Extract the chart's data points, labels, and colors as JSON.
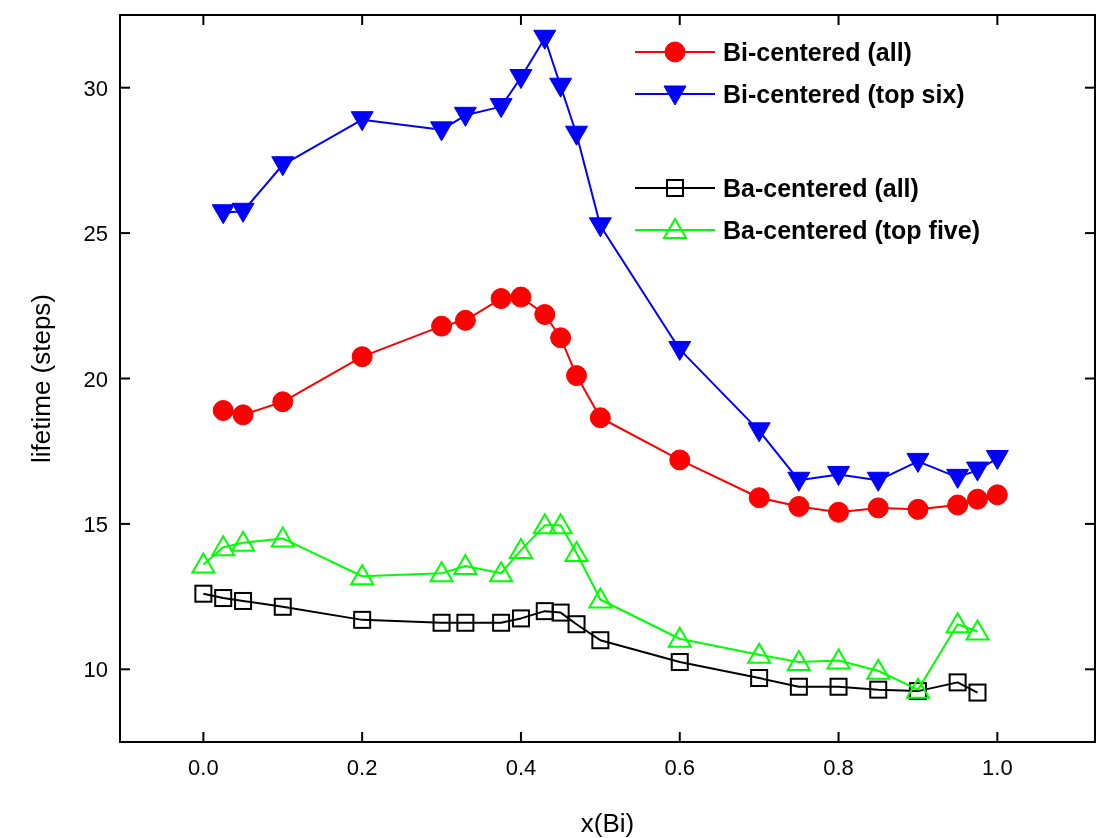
{
  "chart_data": {
    "type": "line",
    "xlabel": "x(Bi)",
    "ylabel": "lifetime (steps)",
    "xlim": [
      -0.105,
      1.123
    ],
    "ylim": [
      7.5,
      32.5
    ],
    "xticks": [
      {
        "value": 0,
        "label": "0.0"
      },
      {
        "value": 0.2,
        "label": "0.2"
      },
      {
        "value": 0.4,
        "label": "0.4"
      },
      {
        "value": 0.6,
        "label": "0.6"
      },
      {
        "value": 0.8,
        "label": "0.8"
      },
      {
        "value": 1,
        "label": "1.0"
      }
    ],
    "yticks": [
      10,
      15,
      20,
      25,
      30
    ],
    "grid": false,
    "legend": "top right",
    "series": [
      {
        "name": "Bi-centered (all)",
        "color": "#ff0000",
        "marker": "circle",
        "x": [
          0.025,
          0.05,
          0.1,
          0.2,
          0.3,
          0.33,
          0.375,
          0.4,
          0.43,
          0.45,
          0.47,
          0.5,
          0.6,
          0.7,
          0.75,
          0.8,
          0.85,
          0.9,
          0.95,
          0.975,
          1.0
        ],
        "values": [
          18.9,
          18.75,
          19.2,
          20.75,
          21.8,
          22.0,
          22.75,
          22.8,
          22.2,
          21.4,
          20.1,
          18.65,
          17.2,
          15.9,
          15.6,
          15.4,
          15.55,
          15.5,
          15.65,
          15.85,
          16.0
        ]
      },
      {
        "name": "Bi-centered (top six)",
        "color": "#0000ff",
        "marker": "triangle-down",
        "x": [
          0.025,
          0.05,
          0.1,
          0.2,
          0.3,
          0.33,
          0.375,
          0.4,
          0.43,
          0.45,
          0.47,
          0.5,
          0.6,
          0.7,
          0.75,
          0.8,
          0.85,
          0.9,
          0.95,
          0.975,
          1.0
        ],
        "values": [
          25.7,
          25.75,
          27.35,
          28.9,
          28.55,
          29.05,
          29.35,
          30.35,
          31.7,
          30.05,
          28.4,
          25.25,
          21.0,
          18.2,
          16.5,
          16.7,
          16.5,
          17.15,
          16.6,
          16.85,
          17.25
        ]
      },
      {
        "name": "Ba-centered (all)",
        "color": "#000000",
        "marker": "square-open",
        "x": [
          0.0,
          0.025,
          0.05,
          0.1,
          0.2,
          0.3,
          0.33,
          0.375,
          0.4,
          0.43,
          0.45,
          0.47,
          0.5,
          0.6,
          0.7,
          0.75,
          0.8,
          0.85,
          0.9,
          0.95,
          0.975
        ],
        "values": [
          12.6,
          12.45,
          12.35,
          12.15,
          11.7,
          11.6,
          11.6,
          11.6,
          11.75,
          12.0,
          11.95,
          11.55,
          11.0,
          10.25,
          9.7,
          9.4,
          9.4,
          9.3,
          9.25,
          9.55,
          9.2
        ]
      },
      {
        "name": "Ba-centered (top five)",
        "color": "#00ff00",
        "marker": "triangle-open",
        "x": [
          0.0,
          0.025,
          0.05,
          0.1,
          0.2,
          0.3,
          0.33,
          0.375,
          0.4,
          0.43,
          0.45,
          0.47,
          0.5,
          0.6,
          0.7,
          0.75,
          0.8,
          0.85,
          0.9,
          0.95,
          0.975
        ],
        "values": [
          13.6,
          14.2,
          14.35,
          14.5,
          13.2,
          13.3,
          13.55,
          13.3,
          14.1,
          14.95,
          14.95,
          14.0,
          12.4,
          11.05,
          10.5,
          10.25,
          10.3,
          9.95,
          9.3,
          11.55,
          11.3
        ]
      }
    ]
  }
}
